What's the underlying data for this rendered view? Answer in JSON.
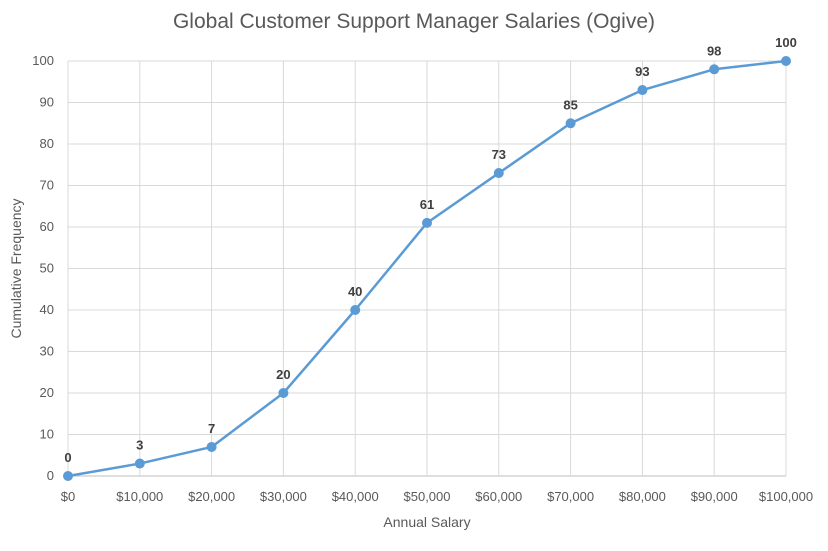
{
  "chart_data": {
    "type": "line",
    "title": "Global Customer Support Manager Salaries (Ogive)",
    "xlabel": "Annual Salary",
    "ylabel": "Cumulative Frequency",
    "categories": [
      "$0",
      "$10,000",
      "$20,000",
      "$30,000",
      "$40,000",
      "$50,000",
      "$60,000",
      "$70,000",
      "$80,000",
      "$90,000",
      "$100,000"
    ],
    "x": [
      0,
      10000,
      20000,
      30000,
      40000,
      50000,
      60000,
      70000,
      80000,
      90000,
      100000
    ],
    "series": [
      {
        "values": [
          0,
          3,
          7,
          20,
          40,
          61,
          73,
          85,
          93,
          98,
          100
        ]
      }
    ],
    "ylim": [
      0,
      100
    ],
    "yticks": [
      0,
      10,
      20,
      30,
      40,
      50,
      60,
      70,
      80,
      90,
      100
    ],
    "grid": true,
    "data_labels": true,
    "legend": "none",
    "colors": {
      "line": "#5b9bd5",
      "grid": "#d9d9d9",
      "text": "#595959",
      "label": "#404040"
    }
  }
}
